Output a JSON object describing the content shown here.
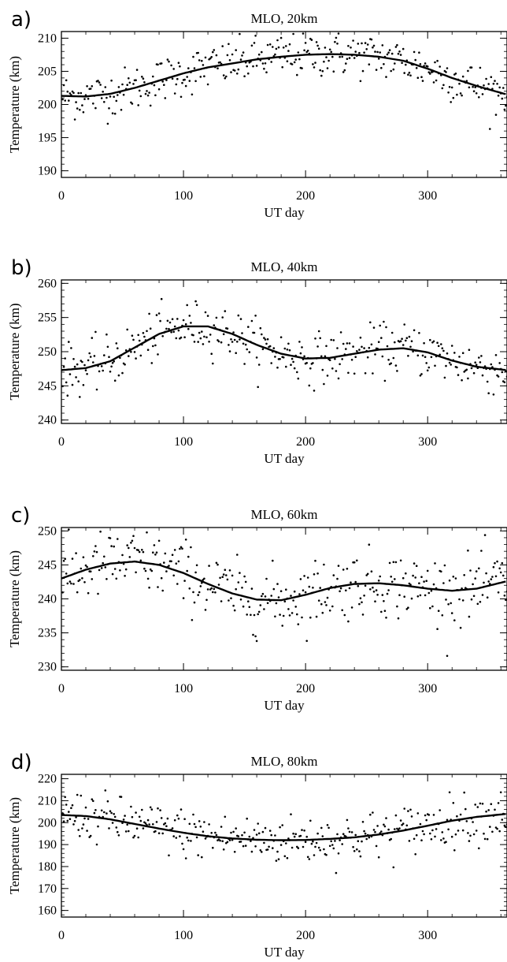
{
  "figure": {
    "panels": [
      {
        "label": "a)",
        "title": "MLO, 20km",
        "xlabel": "UT day",
        "ylabel": "Temperature (km)",
        "ylim": [
          189,
          211
        ],
        "yticks": [
          190,
          195,
          200,
          205,
          210
        ],
        "xlim": [
          0,
          365
        ],
        "xticks": [
          0,
          100,
          200,
          300
        ]
      },
      {
        "label": "b)",
        "title": "MLO, 40km",
        "xlabel": "UT day",
        "ylabel": "Temperature (km)",
        "ylim": [
          239.5,
          260.5
        ],
        "yticks": [
          240,
          245,
          250,
          255,
          260
        ],
        "xlim": [
          0,
          365
        ],
        "xticks": [
          0,
          100,
          200,
          300
        ]
      },
      {
        "label": "c)",
        "title": "MLO, 60km",
        "xlabel": "UT day",
        "ylabel": "Temperature (km)",
        "ylim": [
          229.5,
          250.5
        ],
        "yticks": [
          230,
          235,
          240,
          245,
          250
        ],
        "xlim": [
          0,
          365
        ],
        "xticks": [
          0,
          100,
          200,
          300
        ]
      },
      {
        "label": "d)",
        "title": "MLO, 80km",
        "xlabel": "UT day",
        "ylabel": "Temperature (km)",
        "ylim": [
          157,
          222
        ],
        "yticks": [
          160,
          170,
          180,
          190,
          200,
          210,
          220
        ],
        "xlim": [
          0,
          365
        ],
        "xticks": [
          0,
          100,
          200,
          300
        ]
      }
    ]
  },
  "chart_data": [
    {
      "type": "scatter",
      "title": "MLO, 20km",
      "xlabel": "UT day",
      "ylabel": "Temperature (km)",
      "xlim": [
        0,
        365
      ],
      "ylim": [
        189,
        211
      ],
      "fit_curve": {
        "x": [
          0,
          20,
          40,
          60,
          80,
          100,
          120,
          140,
          160,
          180,
          200,
          220,
          240,
          260,
          280,
          300,
          320,
          340,
          365
        ],
        "y": [
          201.3,
          201.2,
          201.6,
          202.5,
          203.6,
          204.7,
          205.6,
          206.2,
          206.8,
          207.2,
          207.5,
          207.6,
          207.5,
          207.2,
          206.6,
          205.4,
          204.0,
          202.8,
          201.5
        ]
      },
      "noise": 1.7
    },
    {
      "type": "scatter",
      "title": "MLO, 40km",
      "xlabel": "UT day",
      "ylabel": "Temperature (km)",
      "xlim": [
        0,
        365
      ],
      "ylim": [
        239.5,
        260.5
      ],
      "fit_curve": {
        "x": [
          0,
          20,
          40,
          60,
          80,
          100,
          120,
          140,
          160,
          180,
          200,
          220,
          240,
          260,
          280,
          300,
          320,
          340,
          365
        ],
        "y": [
          247.3,
          247.6,
          248.6,
          250.6,
          252.6,
          253.7,
          253.7,
          252.6,
          251.0,
          249.7,
          249.0,
          249.1,
          249.7,
          250.3,
          250.5,
          249.9,
          248.7,
          247.8,
          247.3
        ]
      },
      "noise": 1.8
    },
    {
      "type": "scatter",
      "title": "MLO, 60km",
      "xlabel": "UT day",
      "ylabel": "Temperature (km)",
      "xlim": [
        0,
        365
      ],
      "ylim": [
        229.5,
        250.5
      ],
      "fit_curve": {
        "x": [
          0,
          20,
          40,
          60,
          80,
          100,
          120,
          140,
          160,
          180,
          200,
          220,
          240,
          260,
          280,
          300,
          320,
          340,
          365
        ],
        "y": [
          243.0,
          244.3,
          245.2,
          245.5,
          245.0,
          243.8,
          242.2,
          240.8,
          239.9,
          239.8,
          240.6,
          241.6,
          242.2,
          242.3,
          242.0,
          241.5,
          241.2,
          241.5,
          242.6
        ]
      },
      "noise": 2.4
    },
    {
      "type": "scatter",
      "title": "MLO, 80km",
      "xlabel": "UT day",
      "ylabel": "Temperature (km)",
      "xlim": [
        0,
        365
      ],
      "ylim": [
        157,
        222
      ],
      "fit_curve": {
        "x": [
          0,
          20,
          40,
          60,
          80,
          100,
          120,
          140,
          160,
          180,
          200,
          220,
          240,
          260,
          280,
          300,
          320,
          340,
          365
        ],
        "y": [
          203.5,
          203.0,
          201.5,
          199.4,
          197.3,
          195.4,
          193.8,
          192.8,
          192.2,
          192.0,
          192.1,
          192.6,
          193.3,
          194.6,
          196.4,
          198.6,
          200.9,
          202.6,
          204.0
        ]
      },
      "noise": 5.5
    }
  ]
}
